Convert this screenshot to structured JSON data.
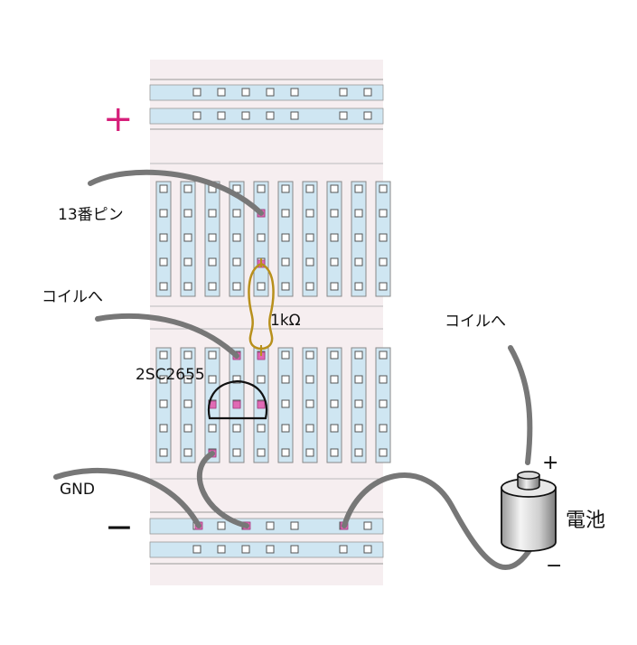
{
  "labels": {
    "pin13": "13番ピン",
    "coil_left": "コイルへ",
    "coil_right": "コイルへ",
    "resistor": "1kΩ",
    "transistor": "2SC2655",
    "gnd": "GND",
    "battery": "電池",
    "rail_plus": "+",
    "rail_minus": "−",
    "battery_plus": "+",
    "battery_minus": "−"
  },
  "colors": {
    "board": "#f6eef0",
    "rail_strip": "#cfe6f2",
    "hole_edge": "#777777",
    "wire": "#777777",
    "active_hole": "#e06ab4",
    "resistor": "#b8901c",
    "rail_plus_mark": "#d61f7a"
  }
}
